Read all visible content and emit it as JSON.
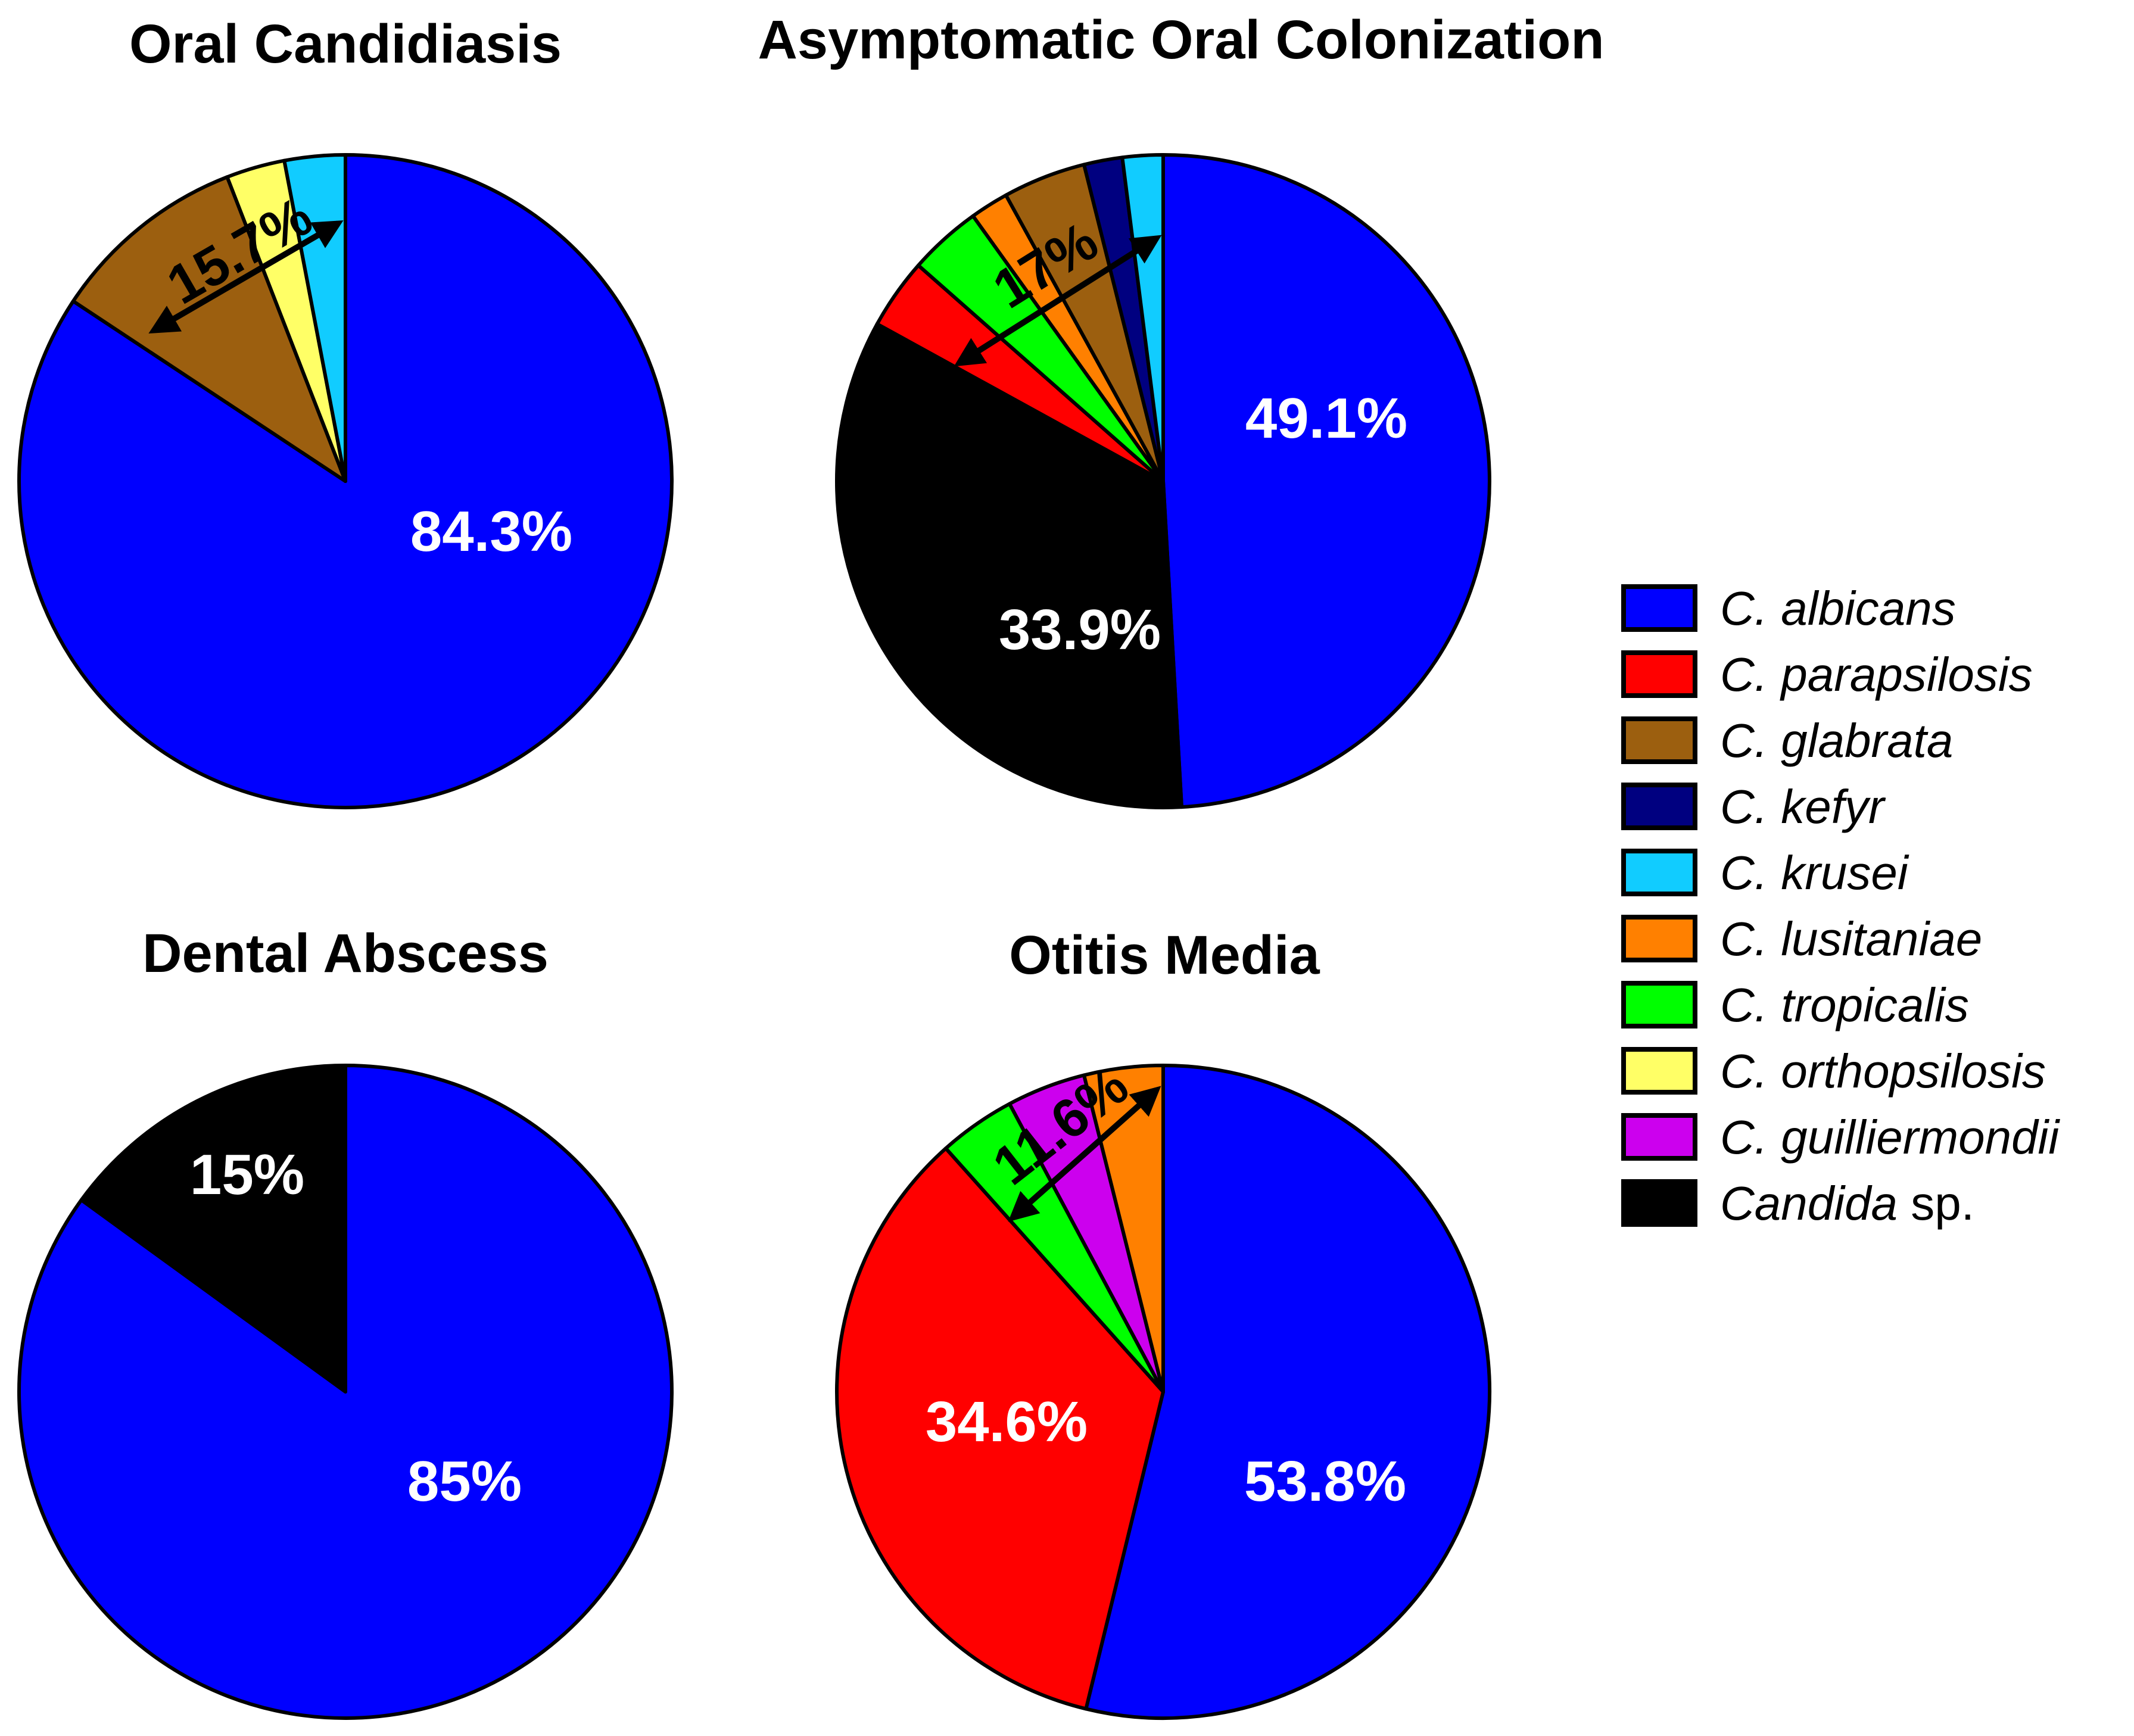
{
  "chart_data": [
    {
      "type": "pie",
      "title": "Oral Candidiasis",
      "slices": [
        {
          "species": "C. albicans",
          "value": 84.3,
          "label": "84.3%"
        },
        {
          "species": "C. glabrata",
          "value": 9.8
        },
        {
          "species": "C. orthopsilosis",
          "value": 2.9
        },
        {
          "species": "C. krusei",
          "value": 3.0
        }
      ],
      "bracket_label": "15.7%"
    },
    {
      "type": "pie",
      "title": "Asymptomatic Oral Colonization",
      "slices": [
        {
          "species": "C. albicans",
          "value": 49.1,
          "label": "49.1%"
        },
        {
          "species": "Candida sp.",
          "value": 33.9,
          "label": "33.9%"
        },
        {
          "species": "C. parapsilosis",
          "value": 3.5
        },
        {
          "species": "C. tropicalis",
          "value": 3.6
        },
        {
          "species": "C. lusitaniae",
          "value": 1.9
        },
        {
          "species": "C. glabrata",
          "value": 4.1
        },
        {
          "species": "C. kefyr",
          "value": 1.9
        },
        {
          "species": "C. krusei",
          "value": 2.0
        }
      ],
      "bracket_label": "17%"
    },
    {
      "type": "pie",
      "title": "Dental Abscess",
      "slices": [
        {
          "species": "C. albicans",
          "value": 85,
          "label": "85%"
        },
        {
          "species": "Candida sp.",
          "value": 15,
          "label": "15%"
        }
      ]
    },
    {
      "type": "pie",
      "title": "Otitis Media",
      "slices": [
        {
          "species": "C. albicans",
          "value": 53.8,
          "label": "53.8%"
        },
        {
          "species": "C. parapsilosis",
          "value": 34.6,
          "label": "34.6%"
        },
        {
          "species": "C. tropicalis",
          "value": 3.8
        },
        {
          "species": "C. guilliermondii",
          "value": 3.9
        },
        {
          "species": "C. lusitaniae",
          "value": 3.9
        }
      ],
      "bracket_label": "11.6%"
    }
  ],
  "legend": {
    "position": "right",
    "items": [
      {
        "species": "C. albicans",
        "prefix": "",
        "italic": "C. albicans",
        "suffix": "",
        "color": "#0000ff"
      },
      {
        "species": "C. parapsilosis",
        "prefix": "",
        "italic": "C. parapsilosis",
        "suffix": "",
        "color": "#ff0000"
      },
      {
        "species": "C. glabrata",
        "prefix": "",
        "italic": "C. glabrata",
        "suffix": "",
        "color": "#9c5f0f"
      },
      {
        "species": "C. kefyr",
        "prefix": "",
        "italic": "C. kefyr",
        "suffix": "",
        "color": "#000080"
      },
      {
        "species": "C. krusei",
        "prefix": "",
        "italic": "C. krusei",
        "suffix": "",
        "color": "#11ccff"
      },
      {
        "species": "C. lusitaniae",
        "prefix": "",
        "italic": "C. lusitaniae",
        "suffix": "",
        "color": "#ff8000"
      },
      {
        "species": "C. tropicalis",
        "prefix": "",
        "italic": "C. tropicalis",
        "suffix": "",
        "color": "#00ff00"
      },
      {
        "species": "C. orthopsilosis",
        "prefix": "",
        "italic": "C. orthopsilosis",
        "suffix": "",
        "color": "#ffff66"
      },
      {
        "species": "C. guilliermondii",
        "prefix": "",
        "italic": "C. guilliermondii",
        "suffix": "",
        "color": "#cc00ee"
      },
      {
        "species": "Candida sp.",
        "prefix": "",
        "italic": "Candida",
        "suffix": " sp.",
        "color": "#000000"
      }
    ]
  }
}
